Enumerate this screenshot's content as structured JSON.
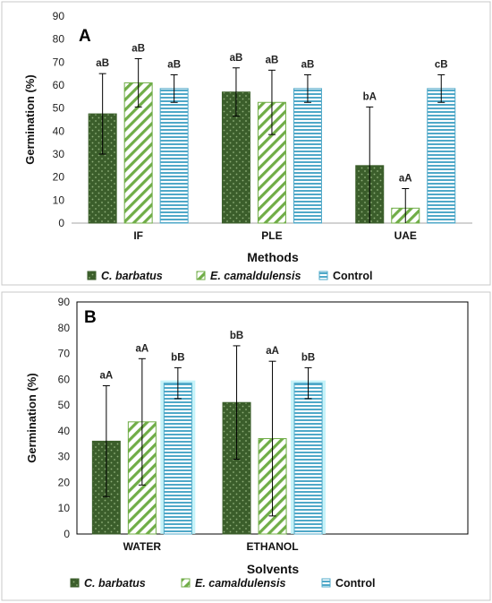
{
  "colors": {
    "s0_fill": "#3b5e2b",
    "s0_dot": "#8fb07a",
    "s1_stroke": "#70ad47",
    "s2_fill": "#4fa8c8",
    "s2_glow": "#b8f0f8",
    "panel_border": "#c8c8c8"
  },
  "chart_data": [
    {
      "type": "bar",
      "panel_label": "A",
      "xlabel": "Methods",
      "ylabel": "Germination (%)",
      "ylim": [
        0,
        90
      ],
      "yticks": [
        "0",
        "10",
        "20",
        "30",
        "40",
        "50",
        "60",
        "70",
        "80",
        "90"
      ],
      "categories": [
        "IF",
        "PLE",
        "UAE"
      ],
      "legend_position": "bottom",
      "series": [
        {
          "name": "C. barbatus",
          "values": [
            47.5,
            57,
            25
          ],
          "errors": [
            17.5,
            10.5,
            25.5
          ],
          "labels": [
            "aB",
            "aB",
            "bA"
          ]
        },
        {
          "name": "E. camaldulensis",
          "values": [
            61,
            52.5,
            6.5
          ],
          "errors": [
            10.5,
            14,
            8.5
          ],
          "labels": [
            "aB",
            "aB",
            "aA"
          ]
        },
        {
          "name": "Control",
          "values": [
            58.5,
            58.5,
            58.5
          ],
          "errors": [
            6,
            6,
            6
          ],
          "labels": [
            "aB",
            "aB",
            "cB"
          ]
        }
      ]
    },
    {
      "type": "bar",
      "panel_label": "B",
      "xlabel": "Solvents",
      "ylabel": "Germination (%)",
      "ylim": [
        0,
        90
      ],
      "yticks": [
        "0",
        "10",
        "20",
        "30",
        "40",
        "50",
        "60",
        "70",
        "80",
        "90"
      ],
      "categories": [
        "WATER",
        "ETHANOL"
      ],
      "legend_position": "bottom",
      "series": [
        {
          "name": "C. barbatus",
          "values": [
            36,
            51
          ],
          "errors": [
            21.5,
            22
          ],
          "labels": [
            "aA",
            "bB"
          ]
        },
        {
          "name": "E. camaldulensis",
          "values": [
            43.5,
            37
          ],
          "errors": [
            24.5,
            30
          ],
          "labels": [
            "aA",
            "aA"
          ]
        },
        {
          "name": "Control",
          "values": [
            58.5,
            58.5
          ],
          "errors": [
            6,
            6
          ],
          "labels": [
            "bB",
            "bB"
          ]
        }
      ]
    }
  ]
}
